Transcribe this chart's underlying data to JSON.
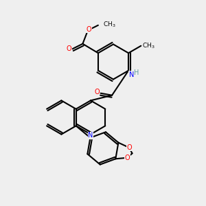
{
  "background_color": "#efefef",
  "bond_color": "#000000",
  "atom_colors": {
    "O": "#ff0000",
    "N": "#0000ff",
    "C": "#000000",
    "H": "#5f9ea0"
  },
  "line_width": 1.5,
  "font_size": 7
}
